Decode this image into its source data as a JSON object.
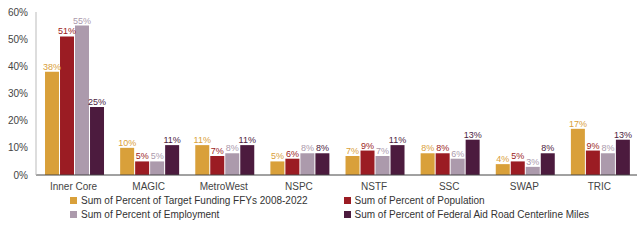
{
  "chart_data": {
    "type": "bar",
    "categories": [
      "Inner Core",
      "MAGIC",
      "MetroWest",
      "NSPC",
      "NSTF",
      "SSC",
      "SWAP",
      "TRIC"
    ],
    "series": [
      {
        "name": "Sum of Percent of Target Funding FFYs 2008-2022",
        "color": "#D9A03A",
        "values": [
          38,
          10,
          11,
          5,
          7,
          8,
          4,
          17
        ],
        "value_labels": [
          "38%",
          "10%",
          "11%",
          "5%",
          "7%",
          "8%",
          "4%",
          "17%"
        ]
      },
      {
        "name": "Sum of Percent of Population",
        "color": "#9B1C23",
        "values": [
          51,
          5,
          7,
          6,
          9,
          8,
          5,
          9
        ],
        "value_labels": [
          "51%",
          "5%",
          "7%",
          "6%",
          "9%",
          "8%",
          "5%",
          "9%"
        ]
      },
      {
        "name": "Sum of Percent of Employment",
        "color": "#AC9AAC",
        "values": [
          55,
          5,
          8,
          8,
          7,
          6,
          3,
          8
        ],
        "value_labels": [
          "55%",
          "5%",
          "8%",
          "8%",
          "7%",
          "6%",
          "3%",
          "8%"
        ]
      },
      {
        "name": "Sum of Percent of Federal Aid Road Centerline Miles",
        "color": "#4C1B3E",
        "values": [
          25,
          11,
          11,
          8,
          11,
          13,
          8,
          13
        ],
        "value_labels": [
          "25%",
          "11%",
          "11%",
          "8%",
          "11%",
          "13%",
          "8%",
          "13%"
        ]
      }
    ],
    "ylim": [
      0,
      60
    ],
    "yticks": [
      {
        "value": 0,
        "label": "0%"
      },
      {
        "value": 10,
        "label": "10%"
      },
      {
        "value": 20,
        "label": "20%"
      },
      {
        "value": 30,
        "label": "30%"
      },
      {
        "value": 40,
        "label": "40%"
      },
      {
        "value": 50,
        "label": "50%"
      },
      {
        "value": 60,
        "label": "60%"
      }
    ],
    "grid": false,
    "legend": "bottom",
    "data_labels": true
  }
}
